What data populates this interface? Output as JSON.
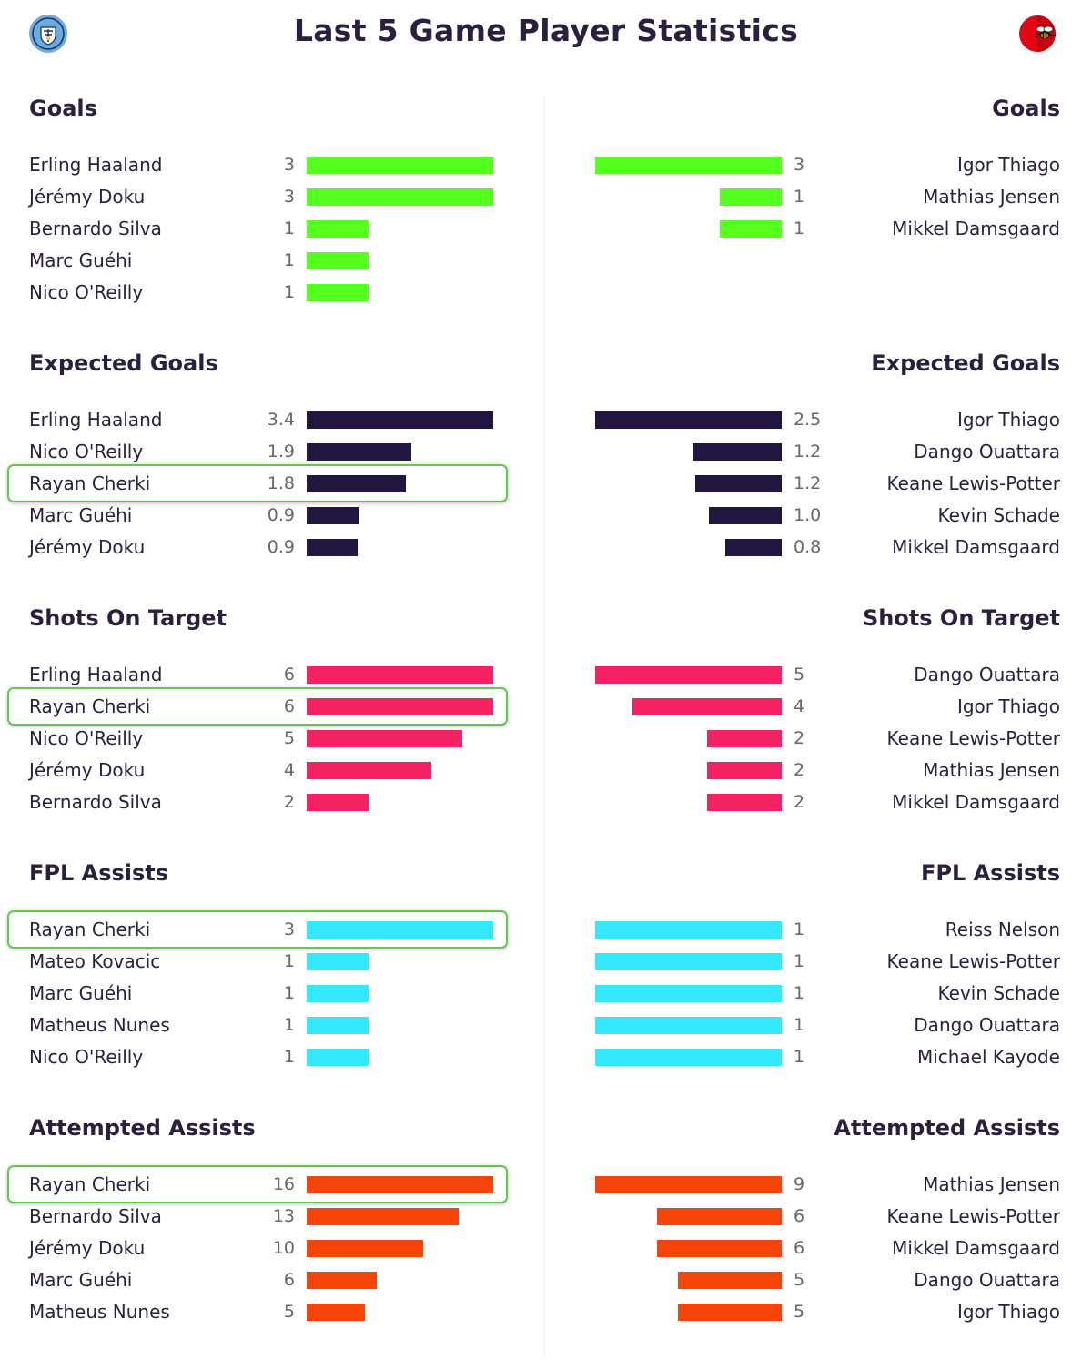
{
  "header": {
    "title": "Last 5 Game Player Statistics",
    "left_crest_icon": "manchester-city-crest-icon",
    "right_crest_icon": "brentford-bee-crest-icon"
  },
  "colors": {
    "goals": "#55ff1e",
    "expected_goals": "#21163f",
    "shots_on_target": "#f52263",
    "fpl_assists": "#33e8fc",
    "attempted_assists": "#f5440a",
    "highlight": "#63c94a"
  },
  "chart_data": [
    {
      "type": "bar",
      "title": "Goals",
      "side": "left",
      "color_key": "goals",
      "max": 3,
      "categories": [
        "Erling Haaland",
        "Jérémy Doku",
        "Bernardo Silva",
        "Marc Guéhi",
        "Nico O'Reilly"
      ],
      "labels": [
        "3",
        "3",
        "1",
        "1",
        "1"
      ],
      "values": [
        3,
        3,
        1,
        1,
        1
      ],
      "highlighted": []
    },
    {
      "type": "bar",
      "title": "Goals",
      "side": "right",
      "color_key": "goals",
      "max": 3,
      "categories": [
        "Igor Thiago",
        "Mathias Jensen",
        "Mikkel Damsgaard"
      ],
      "labels": [
        "3",
        "1",
        "1"
      ],
      "values": [
        3,
        1,
        1
      ],
      "highlighted": []
    },
    {
      "type": "bar",
      "title": "Expected Goals",
      "side": "left",
      "color_key": "expected_goals",
      "max": 3.4,
      "categories": [
        "Erling Haaland",
        "Nico O'Reilly",
        "Rayan Cherki",
        "Marc Guéhi",
        "Jérémy Doku"
      ],
      "labels": [
        "3.4",
        "1.9",
        "1.8",
        "0.9",
        "0.9"
      ],
      "values": [
        3.4,
        1.9,
        1.8,
        0.95,
        0.93
      ],
      "highlighted": [
        2
      ]
    },
    {
      "type": "bar",
      "title": "Expected Goals",
      "side": "right",
      "color_key": "expected_goals",
      "max": 2.5,
      "categories": [
        "Igor Thiago",
        "Dango Ouattara",
        "Keane Lewis-Potter",
        "Kevin Schade",
        "Mikkel Damsgaard"
      ],
      "labels": [
        "2.5",
        "1.2",
        "1.2",
        "1.0",
        "0.8"
      ],
      "values": [
        2.5,
        1.2,
        1.16,
        0.98,
        0.76
      ],
      "highlighted": []
    },
    {
      "type": "bar",
      "title": "Shots On Target",
      "side": "left",
      "color_key": "shots_on_target",
      "max": 6,
      "categories": [
        "Erling Haaland",
        "Rayan Cherki",
        "Nico O'Reilly",
        "Jérémy Doku",
        "Bernardo Silva"
      ],
      "labels": [
        "6",
        "6",
        "5",
        "4",
        "2"
      ],
      "values": [
        6,
        6,
        5,
        4,
        2
      ],
      "highlighted": [
        1
      ]
    },
    {
      "type": "bar",
      "title": "Shots On Target",
      "side": "right",
      "color_key": "shots_on_target",
      "max": 5,
      "categories": [
        "Dango Ouattara",
        "Igor Thiago",
        "Keane Lewis-Potter",
        "Mathias Jensen",
        "Mikkel Damsgaard"
      ],
      "labels": [
        "5",
        "4",
        "2",
        "2",
        "2"
      ],
      "values": [
        5,
        4,
        2,
        2,
        2
      ],
      "highlighted": []
    },
    {
      "type": "bar",
      "title": "FPL Assists",
      "side": "left",
      "color_key": "fpl_assists",
      "max": 3,
      "categories": [
        "Rayan Cherki",
        "Mateo Kovacic",
        "Marc Guéhi",
        "Matheus Nunes",
        "Nico O'Reilly"
      ],
      "labels": [
        "3",
        "1",
        "1",
        "1",
        "1"
      ],
      "values": [
        3,
        1,
        1,
        1,
        1
      ],
      "highlighted": [
        0
      ]
    },
    {
      "type": "bar",
      "title": "FPL Assists",
      "side": "right",
      "color_key": "fpl_assists",
      "max": 1,
      "categories": [
        "Reiss Nelson",
        "Keane Lewis-Potter",
        "Kevin Schade",
        "Dango Ouattara",
        "Michael Kayode"
      ],
      "labels": [
        "1",
        "1",
        "1",
        "1",
        "1"
      ],
      "values": [
        1,
        1,
        1,
        1,
        1
      ],
      "highlighted": []
    },
    {
      "type": "bar",
      "title": "Attempted Assists",
      "side": "left",
      "color_key": "attempted_assists",
      "max": 16,
      "categories": [
        "Rayan Cherki",
        "Bernardo Silva",
        "Jérémy Doku",
        "Marc Guéhi",
        "Matheus Nunes"
      ],
      "labels": [
        "16",
        "13",
        "10",
        "6",
        "5"
      ],
      "values": [
        16,
        13,
        10,
        6,
        5
      ],
      "highlighted": [
        0
      ]
    },
    {
      "type": "bar",
      "title": "Attempted Assists",
      "side": "right",
      "color_key": "attempted_assists",
      "max": 9,
      "categories": [
        "Mathias Jensen",
        "Keane Lewis-Potter",
        "Mikkel Damsgaard",
        "Dango Ouattara",
        "Igor Thiago"
      ],
      "labels": [
        "9",
        "6",
        "6",
        "5",
        "5"
      ],
      "values": [
        9,
        6,
        6,
        5,
        5
      ],
      "highlighted": []
    }
  ]
}
